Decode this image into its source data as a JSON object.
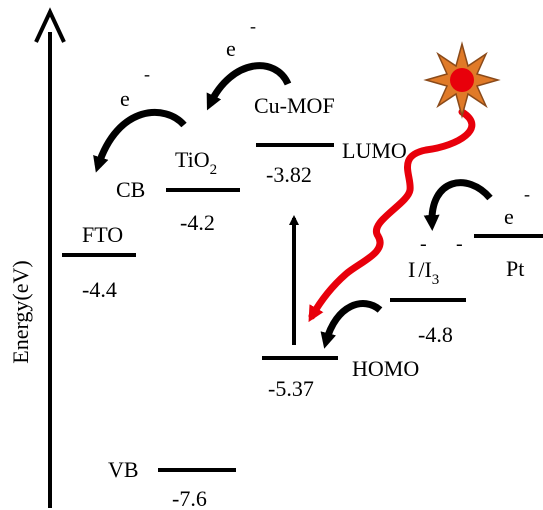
{
  "axis": {
    "label": "Energy(eV)"
  },
  "levels": {
    "fto": {
      "name": "FTO",
      "value": "-4.4"
    },
    "tio2": {
      "name": "TiO",
      "subscript": "2",
      "band_label": "CB",
      "value": "-4.2"
    },
    "vb": {
      "band_label": "VB",
      "value": "-7.6"
    },
    "mof_lumo": {
      "name": "Cu-MOF",
      "orbital": "LUMO",
      "value": "-3.82"
    },
    "mof_homo": {
      "orbital": "HOMO",
      "value": "-5.37"
    },
    "redox": {
      "name_a": "I",
      "slash": "/I",
      "subscript": "3",
      "sup_a": "-",
      "sup_b": "-",
      "value": "-4.8"
    },
    "pt": {
      "name": "Pt"
    }
  },
  "electrons": {
    "symbol": "e",
    "charge": "-"
  },
  "colors": {
    "line": "#000000",
    "light_path": "#e8000b",
    "sun_fill": "#e07a28",
    "sun_core": "#e8000b",
    "sun_stroke": "#8a4a1a"
  },
  "icons": {
    "light_source": "sun-icon"
  }
}
